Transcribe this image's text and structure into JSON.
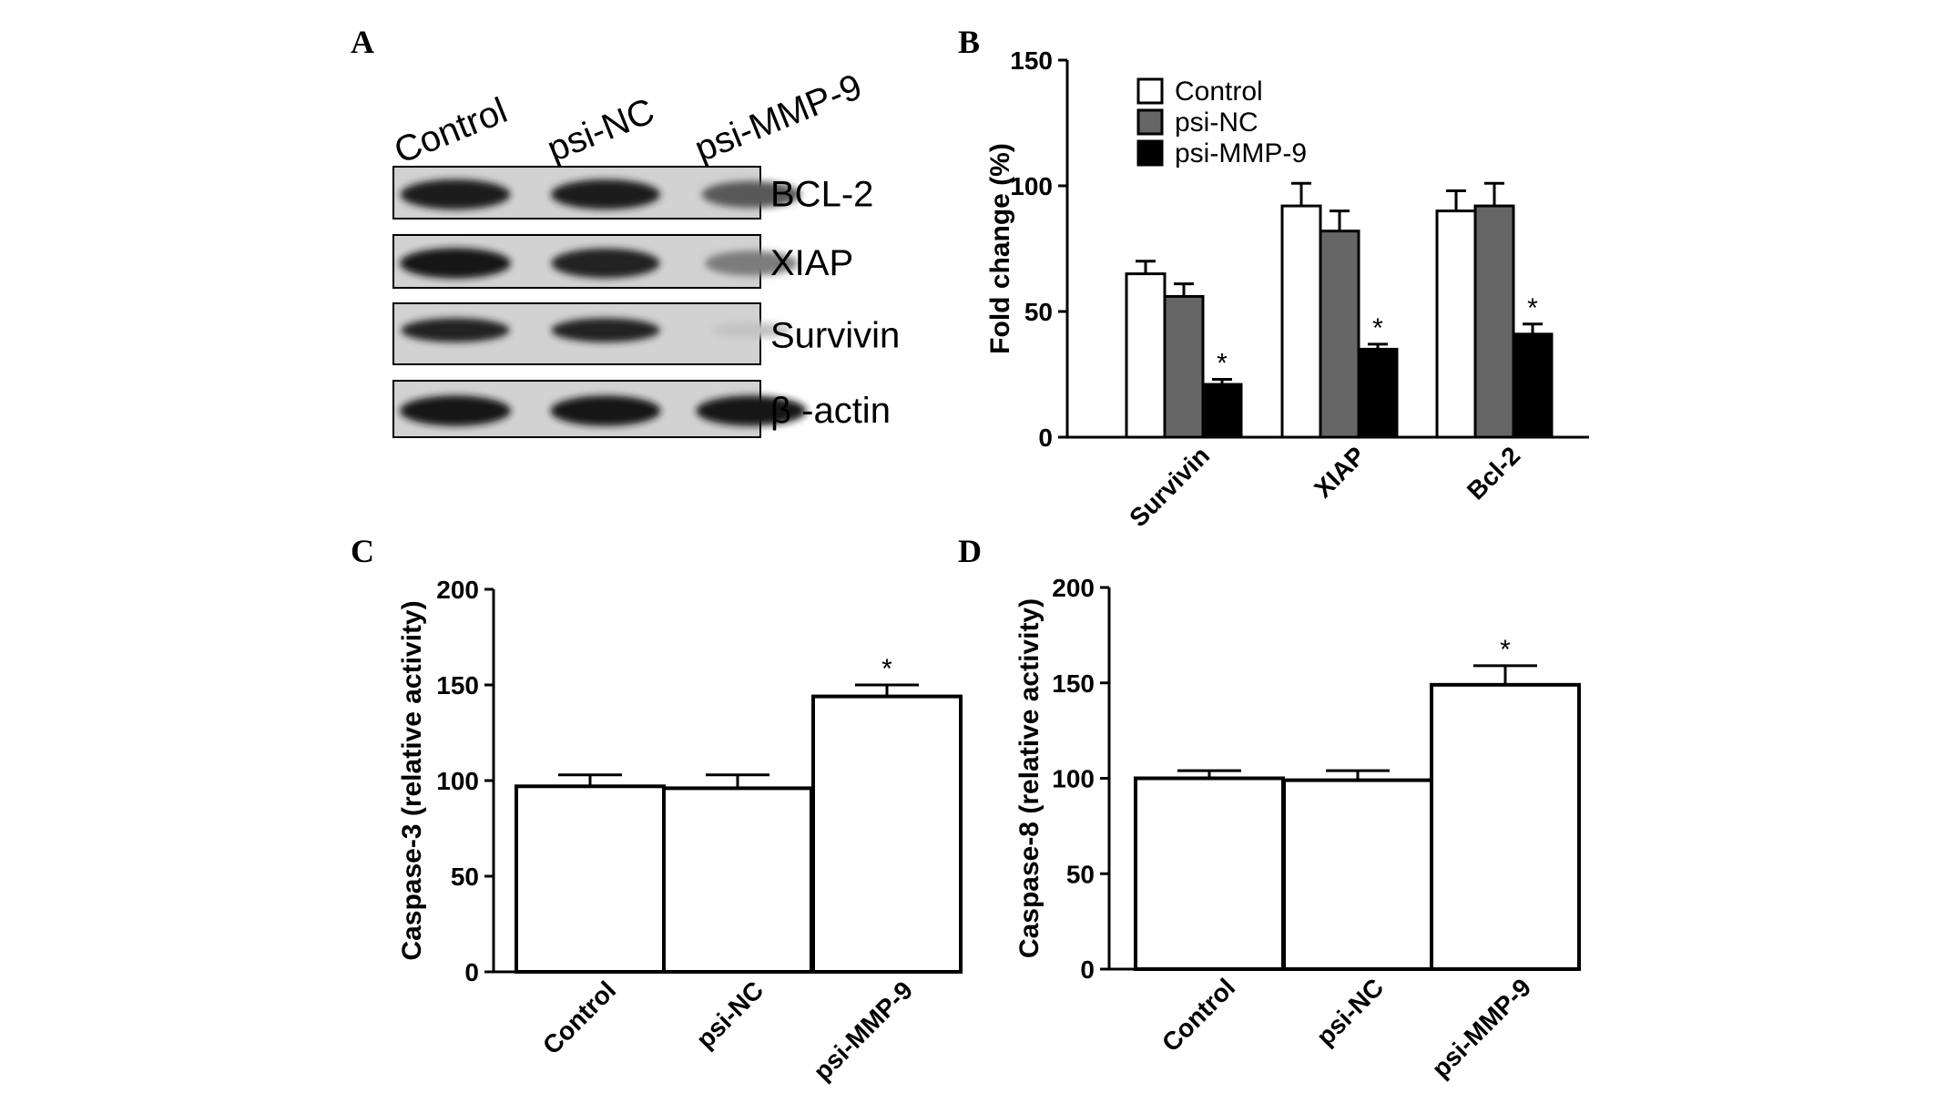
{
  "panels": {
    "A": {
      "letter": "A",
      "lanes": [
        "Control",
        "psi-NC",
        "psi-MMP-9"
      ],
      "rows": [
        {
          "label": "BCL-2",
          "intensity": [
            0.92,
            0.9,
            0.62
          ]
        },
        {
          "label": "XIAP",
          "intensity": [
            0.95,
            0.88,
            0.45
          ]
        },
        {
          "label": "Survivin",
          "intensity": [
            0.88,
            0.88,
            0.1
          ]
        },
        {
          "label": "β -actin",
          "intensity": [
            0.95,
            0.93,
            0.93
          ]
        }
      ]
    },
    "B": {
      "letter": "B"
    },
    "C": {
      "letter": "C"
    },
    "D": {
      "letter": "D"
    }
  },
  "chart_data": [
    {
      "panel": "B",
      "type": "bar",
      "ylabel": "Fold change (%)",
      "ylim": [
        0,
        150
      ],
      "yticks": [
        0,
        50,
        100,
        150
      ],
      "categories": [
        "Survivin",
        "XIAP",
        "Bcl-2"
      ],
      "legend_position": "top-left",
      "series": [
        {
          "name": "Control",
          "values": [
            65,
            92,
            90
          ],
          "errors": [
            5,
            9,
            8
          ],
          "color": "#ffffff"
        },
        {
          "name": "psi-NC",
          "values": [
            56,
            82,
            92
          ],
          "errors": [
            5,
            8,
            9
          ],
          "color": "#666666"
        },
        {
          "name": "psi-MMP-9",
          "values": [
            21,
            35,
            41
          ],
          "errors": [
            2,
            2,
            4
          ],
          "color": "#000000"
        }
      ],
      "significance": [
        {
          "category": "Survivin",
          "series": "psi-MMP-9",
          "mark": "*"
        },
        {
          "category": "XIAP",
          "series": "psi-MMP-9",
          "mark": "*"
        },
        {
          "category": "Bcl-2",
          "series": "psi-MMP-9",
          "mark": "*"
        }
      ]
    },
    {
      "panel": "C",
      "type": "bar",
      "ylabel": "Caspase-3 (relative activity)",
      "ylim": [
        0,
        200
      ],
      "yticks": [
        0,
        50,
        100,
        150,
        200
      ],
      "categories": [
        "Control",
        "psi-NC",
        "psi-MMP-9"
      ],
      "values": [
        97,
        96,
        144
      ],
      "errors": [
        6,
        7,
        6
      ],
      "significance": [
        {
          "category": "psi-MMP-9",
          "mark": "*"
        }
      ]
    },
    {
      "panel": "D",
      "type": "bar",
      "ylabel": "Caspase-8 (relative activity)",
      "ylim": [
        0,
        200
      ],
      "yticks": [
        0,
        50,
        100,
        150,
        200
      ],
      "categories": [
        "Control",
        "psi-NC",
        "psi-MMP-9"
      ],
      "values": [
        100,
        99,
        149
      ],
      "errors": [
        4,
        5,
        10
      ],
      "significance": [
        {
          "category": "psi-MMP-9",
          "mark": "*"
        }
      ]
    }
  ]
}
